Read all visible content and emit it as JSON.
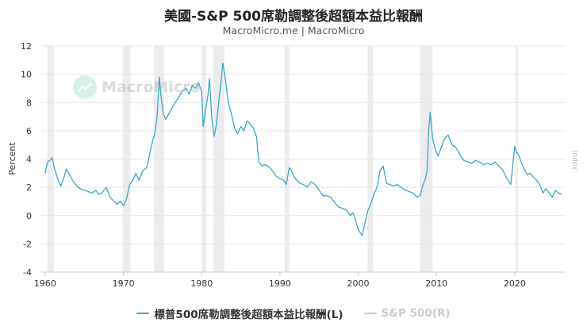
{
  "header": {
    "title": "美國-S&P 500席勒調整後超額本益比報酬",
    "subtitle": "MacroMicro.me | MacroMicro"
  },
  "watermark": {
    "text": "MacroMicro"
  },
  "colors": {
    "series_line": "#3aa6c6",
    "series_inactive": "#cccccc",
    "recession_band": "#ececec",
    "grid": "#e6e6e6"
  },
  "chart_data": {
    "type": "line",
    "ylabel": "Percent",
    "right_axis_label": "Index",
    "ylim": [
      -4,
      12
    ],
    "yticks": [
      -4,
      -2,
      0,
      2,
      4,
      6,
      8,
      10,
      12
    ],
    "xlim": [
      1959.5,
      2026.5
    ],
    "xticks": [
      1960,
      1970,
      1980,
      1990,
      2000,
      2010,
      2020
    ],
    "grid": true,
    "legend_position": "bottom",
    "recession_shading": [
      [
        1960.3,
        1961.1
      ],
      [
        1969.9,
        1970.9
      ],
      [
        1973.9,
        1975.2
      ],
      [
        1980.0,
        1980.6
      ],
      [
        1981.5,
        1982.9
      ],
      [
        1990.6,
        1991.2
      ],
      [
        2001.2,
        2001.9
      ],
      [
        2007.9,
        2009.5
      ],
      [
        2020.1,
        2020.4
      ]
    ],
    "series": [
      {
        "name": "標普500席勒調整後超額本益比報酬(L)",
        "active": true,
        "x": [
          1960.0,
          1960.3,
          1960.6,
          1960.9,
          1961.2,
          1961.6,
          1962.0,
          1962.4,
          1962.7,
          1963.1,
          1963.5,
          1964.0,
          1964.5,
          1965.0,
          1965.5,
          1966.0,
          1966.5,
          1966.8,
          1967.2,
          1967.8,
          1968.3,
          1968.8,
          1969.2,
          1969.6,
          1970.0,
          1970.4,
          1970.8,
          1971.2,
          1971.6,
          1972.0,
          1972.5,
          1973.0,
          1973.3,
          1973.6,
          1974.0,
          1974.3,
          1974.6,
          1974.8,
          1975.1,
          1975.4,
          1975.8,
          1976.2,
          1976.6,
          1977.0,
          1977.5,
          1978.0,
          1978.4,
          1978.8,
          1979.2,
          1979.6,
          1980.0,
          1980.2,
          1980.5,
          1980.8,
          1981.0,
          1981.3,
          1981.6,
          1981.9,
          1982.2,
          1982.5,
          1982.7,
          1983.0,
          1983.4,
          1983.8,
          1984.2,
          1984.6,
          1985.0,
          1985.4,
          1985.8,
          1986.2,
          1986.6,
          1987.0,
          1987.3,
          1987.7,
          1988.0,
          1988.5,
          1989.0,
          1989.5,
          1990.0,
          1990.5,
          1990.8,
          1991.2,
          1991.6,
          1992.0,
          1992.5,
          1993.0,
          1993.5,
          1994.0,
          1994.5,
          1995.0,
          1995.5,
          1996.0,
          1996.5,
          1997.0,
          1997.5,
          1998.0,
          1998.5,
          1999.0,
          1999.3,
          1999.6,
          2000.0,
          2000.5,
          2000.8,
          2001.2,
          2001.6,
          2002.0,
          2002.4,
          2002.8,
          2003.2,
          2003.6,
          2004.0,
          2004.5,
          2005.0,
          2005.5,
          2006.0,
          2006.5,
          2007.0,
          2007.5,
          2007.9,
          2008.3,
          2008.6,
          2008.8,
          2009.0,
          2009.2,
          2009.5,
          2009.8,
          2010.2,
          2010.6,
          2011.0,
          2011.5,
          2012.0,
          2012.5,
          2013.0,
          2013.5,
          2014.0,
          2014.5,
          2015.0,
          2015.5,
          2016.0,
          2016.5,
          2017.0,
          2017.5,
          2018.0,
          2018.5,
          2019.0,
          2019.5,
          2020.0,
          2020.2,
          2020.5,
          2020.8,
          2021.2,
          2021.6,
          2022.0,
          2022.4,
          2022.8,
          2023.2,
          2023.6,
          2024.0,
          2024.4,
          2024.8,
          2025.2,
          2025.6,
          2026.0
        ],
        "values": [
          3.0,
          3.8,
          3.9,
          4.1,
          3.3,
          2.6,
          2.1,
          2.7,
          3.3,
          2.9,
          2.5,
          2.1,
          1.9,
          1.8,
          1.7,
          1.6,
          1.8,
          1.5,
          1.6,
          2.0,
          1.3,
          1.0,
          0.8,
          1.0,
          0.7,
          1.2,
          2.2,
          2.5,
          3.0,
          2.5,
          3.2,
          3.4,
          4.2,
          5.0,
          5.8,
          7.0,
          9.8,
          8.5,
          7.2,
          6.8,
          7.2,
          7.6,
          8.0,
          8.3,
          8.8,
          9.0,
          8.6,
          9.2,
          9.0,
          9.4,
          8.8,
          6.3,
          7.5,
          8.5,
          9.7,
          6.8,
          5.6,
          6.5,
          8.2,
          9.6,
          10.8,
          9.8,
          8.0,
          7.2,
          6.2,
          5.8,
          6.3,
          6.0,
          6.7,
          6.5,
          6.2,
          5.6,
          3.8,
          3.5,
          3.6,
          3.5,
          3.2,
          2.8,
          2.6,
          2.5,
          2.2,
          3.4,
          3.0,
          2.6,
          2.3,
          2.2,
          2.0,
          2.4,
          2.2,
          1.8,
          1.4,
          1.4,
          1.3,
          0.9,
          0.6,
          0.5,
          0.4,
          0.0,
          0.2,
          -0.2,
          -1.0,
          -1.4,
          -0.7,
          0.3,
          0.8,
          1.5,
          2.0,
          3.2,
          3.5,
          2.3,
          2.2,
          2.1,
          2.2,
          2.0,
          1.8,
          1.7,
          1.6,
          1.3,
          1.4,
          2.2,
          2.6,
          3.2,
          6.0,
          7.3,
          5.5,
          4.8,
          4.2,
          4.8,
          5.4,
          5.7,
          5.0,
          4.8,
          4.3,
          3.9,
          3.8,
          3.7,
          3.9,
          3.8,
          3.6,
          3.7,
          3.6,
          3.8,
          3.5,
          3.2,
          2.6,
          2.2,
          4.9,
          4.5,
          4.3,
          3.8,
          3.3,
          2.9,
          3.0,
          2.7,
          2.5,
          2.2,
          1.6,
          1.9,
          1.6,
          1.3,
          1.8,
          1.6,
          1.5
        ]
      },
      {
        "name": "S&P 500(R)",
        "active": false
      }
    ]
  }
}
